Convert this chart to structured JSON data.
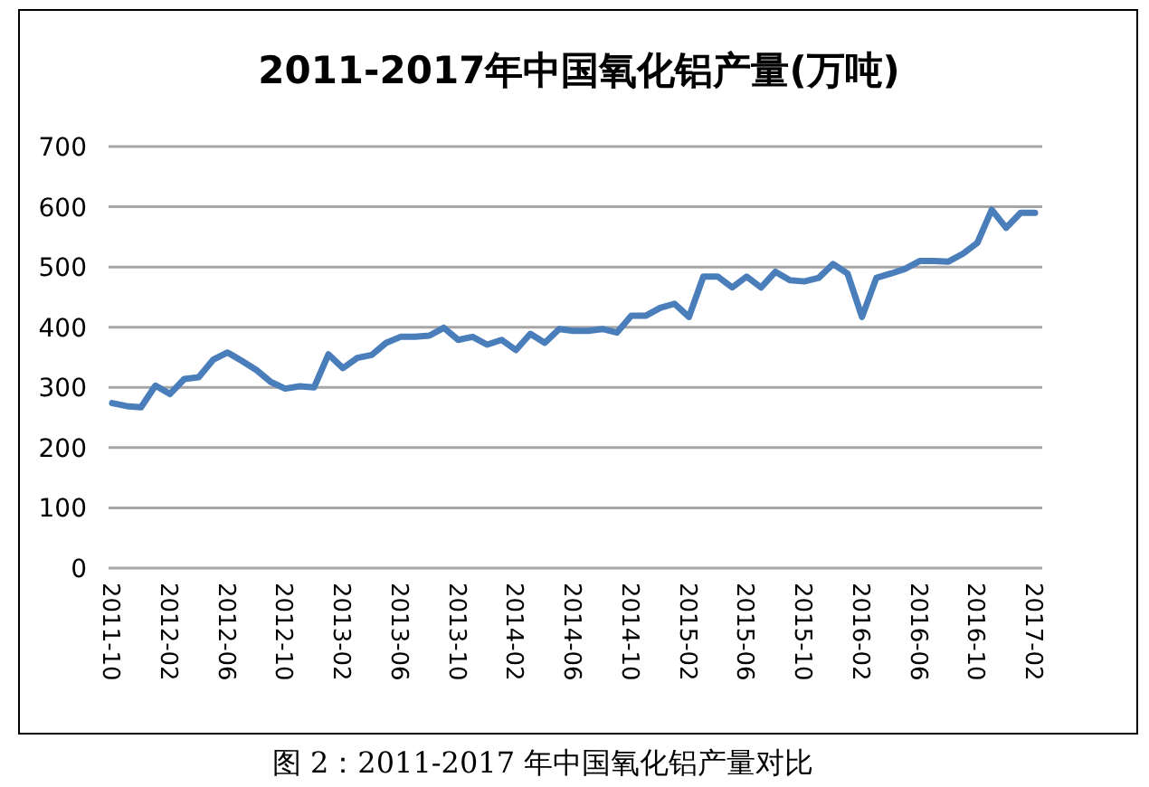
{
  "chart_data": {
    "type": "line",
    "title": "2011-2017年中国氧化铝产量(万吨)",
    "categories": [
      "2011-10",
      null,
      null,
      null,
      "2012-02",
      null,
      null,
      null,
      "2012-06",
      null,
      null,
      null,
      "2012-10",
      null,
      null,
      null,
      "2013-02",
      null,
      null,
      null,
      "2013-06",
      null,
      null,
      null,
      "2013-10",
      null,
      null,
      null,
      "2014-02",
      null,
      null,
      null,
      "2014-06",
      null,
      null,
      null,
      "2014-10",
      null,
      null,
      null,
      "2015-02",
      null,
      null,
      null,
      "2015-06",
      null,
      null,
      null,
      "2015-10",
      null,
      null,
      null,
      "2016-02",
      null,
      null,
      null,
      "2016-06",
      null,
      null,
      null,
      "2016-10",
      null,
      null,
      null,
      "2017-02"
    ],
    "values": [
      274,
      269,
      267,
      303,
      289,
      314,
      317,
      346,
      358,
      344,
      329,
      309,
      298,
      302,
      300,
      355,
      332,
      349,
      354,
      374,
      384,
      384,
      386,
      399,
      379,
      384,
      371,
      379,
      362,
      389,
      374,
      397,
      394,
      394,
      397,
      391,
      419,
      419,
      432,
      439,
      417,
      484,
      484,
      466,
      484,
      466,
      492,
      478,
      476,
      482,
      505,
      489,
      417,
      482,
      489,
      497,
      510,
      510,
      509,
      522,
      540,
      595,
      565,
      590,
      590
    ],
    "color": "#4a7ebb",
    "ylim": [
      0,
      700
    ],
    "yticks": [
      0,
      100,
      200,
      300,
      400,
      500,
      600,
      700
    ],
    "grid": "y",
    "annotations": [
      "图 2：2011-2017 年中国氧化铝产量对比"
    ]
  }
}
